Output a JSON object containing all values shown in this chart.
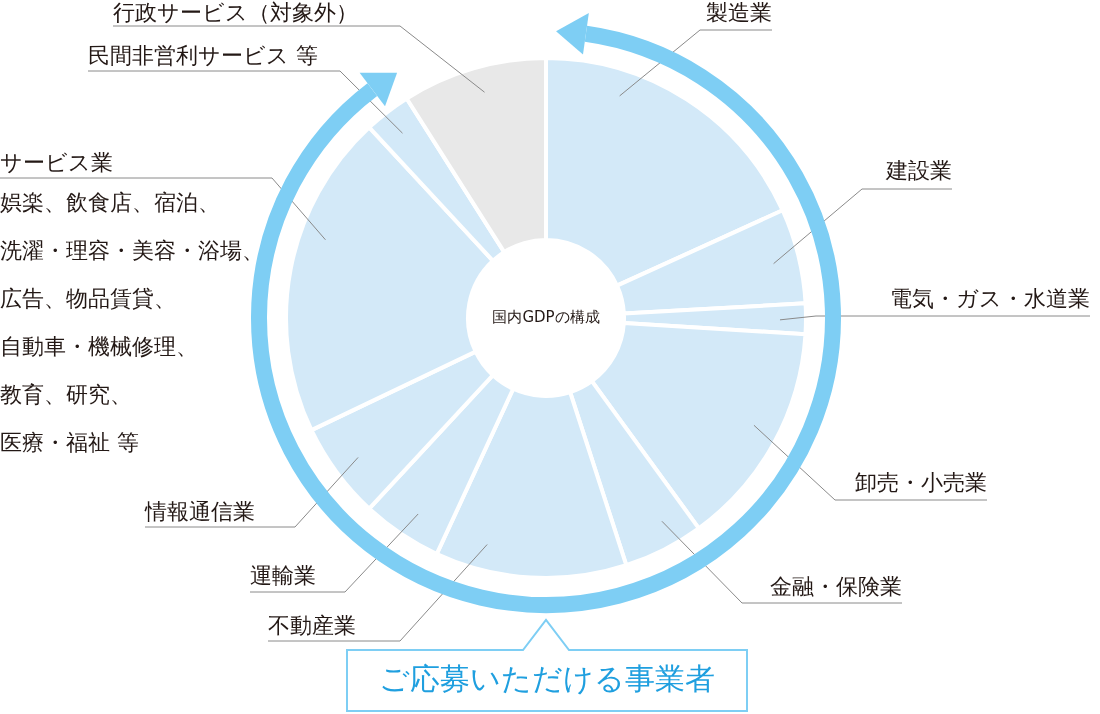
{
  "chart_data": {
    "type": "donut",
    "title": "国内GDPの構成",
    "categories": [
      "製造業",
      "建設業",
      "電気・ガス・水道業",
      "卸売・小売業",
      "金融・保険業",
      "不動産業",
      "運輸業",
      "情報通信業",
      "サービス業",
      "民間非営利サービス 等",
      "行政サービス（対象外）"
    ],
    "values": [
      18.2,
      5.9,
      1.9,
      14.0,
      5.0,
      11.9,
      5.0,
      6.0,
      20.2,
      2.9,
      9.0
    ],
    "colors": [
      "#d3e9f8",
      "#d3e9f8",
      "#d3e9f8",
      "#d3e9f8",
      "#d3e9f8",
      "#d3e9f8",
      "#d3e9f8",
      "#d3e9f8",
      "#d3e9f8",
      "#d3e9f8",
      "#e8e8e8"
    ],
    "annotations": [
      "ご応募いただける事業者",
      {
        "text": "娯楽、飲食店、宿泊、洗濯・理容・美容・浴場、広告、物品賃貸、自動車・機械修理、教育、研究、医療・福祉 等",
        "x": "サービス業"
      }
    ]
  }
}
